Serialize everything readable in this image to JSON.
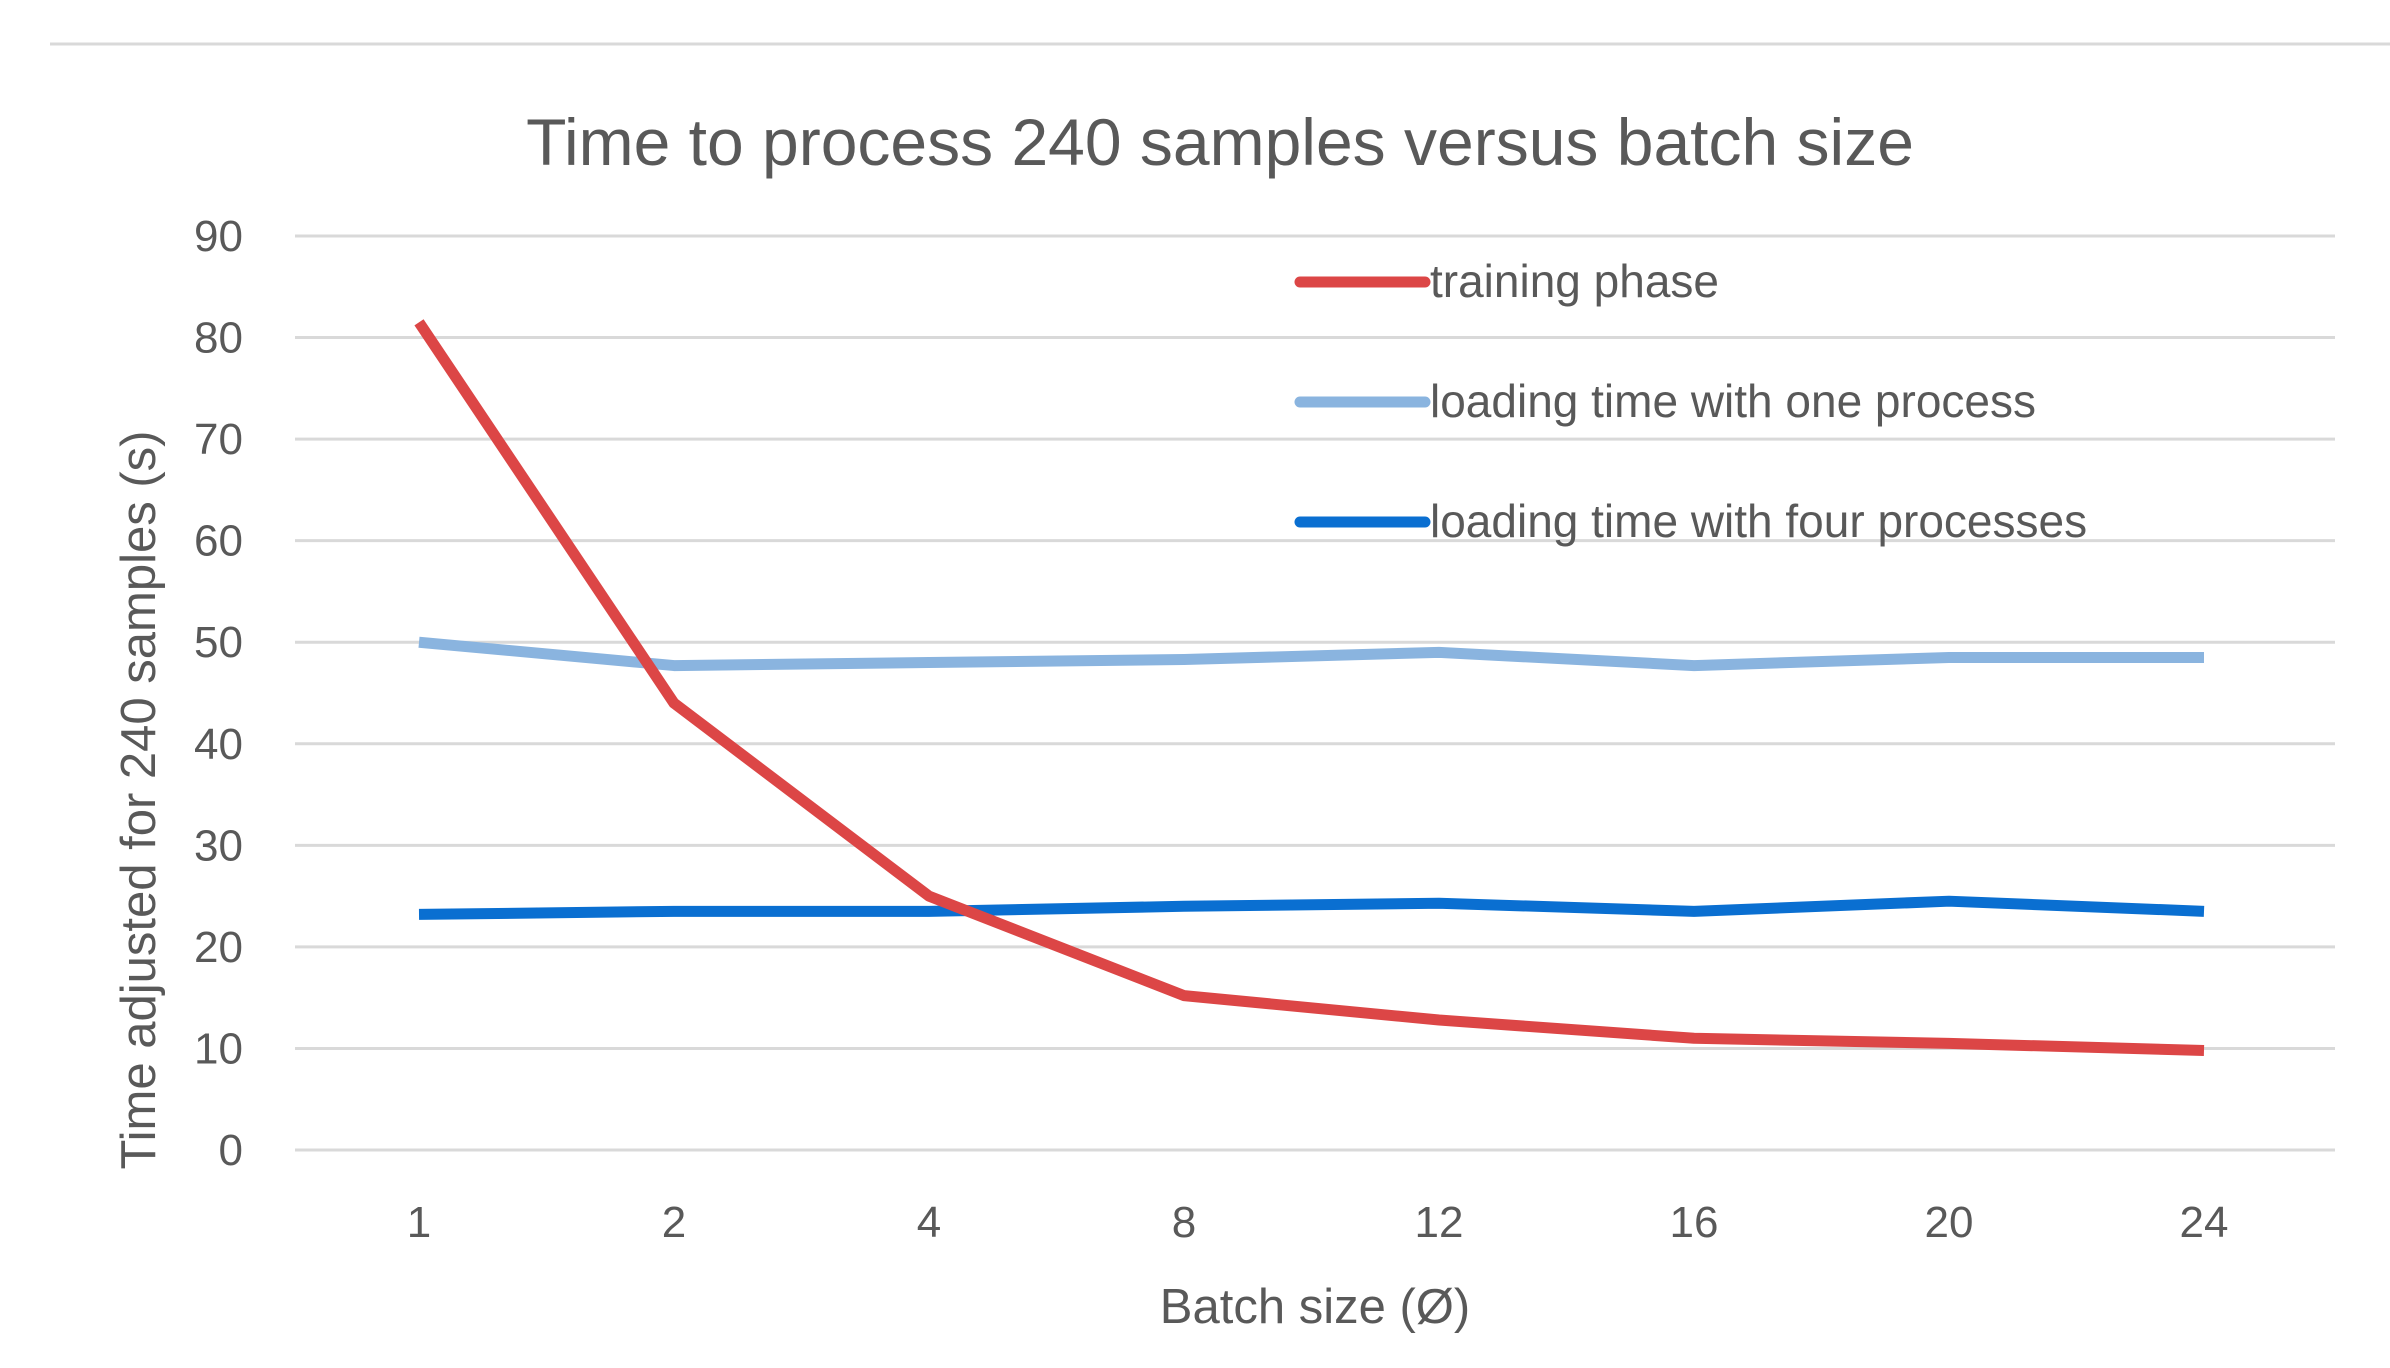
{
  "chart_data": {
    "type": "line",
    "title": "Time to process 240 samples versus batch size",
    "xlabel": "Batch size (Ø)",
    "ylabel": "Time adjusted for 240 samples (s)",
    "categories": [
      "1",
      "2",
      "4",
      "8",
      "12",
      "16",
      "20",
      "24"
    ],
    "ylim": [
      0,
      90
    ],
    "yticks": [
      0,
      10,
      20,
      30,
      40,
      50,
      60,
      70,
      80,
      90
    ],
    "grid": true,
    "legend_position": "top-right",
    "series": [
      {
        "name": "training phase",
        "color": "#dc4646",
        "values": [
          81.5,
          44,
          25,
          15.2,
          12.8,
          11,
          10.5,
          9.8
        ]
      },
      {
        "name": "loading time with one process",
        "color": "#8ab4df",
        "values": [
          50,
          47.7,
          48,
          48.3,
          49,
          47.7,
          48.5,
          48.5
        ]
      },
      {
        "name": "loading time with four processes",
        "color": "#0a6fd1",
        "values": [
          23.2,
          23.5,
          23.5,
          24,
          24.3,
          23.5,
          24.5,
          23.5
        ]
      }
    ]
  }
}
